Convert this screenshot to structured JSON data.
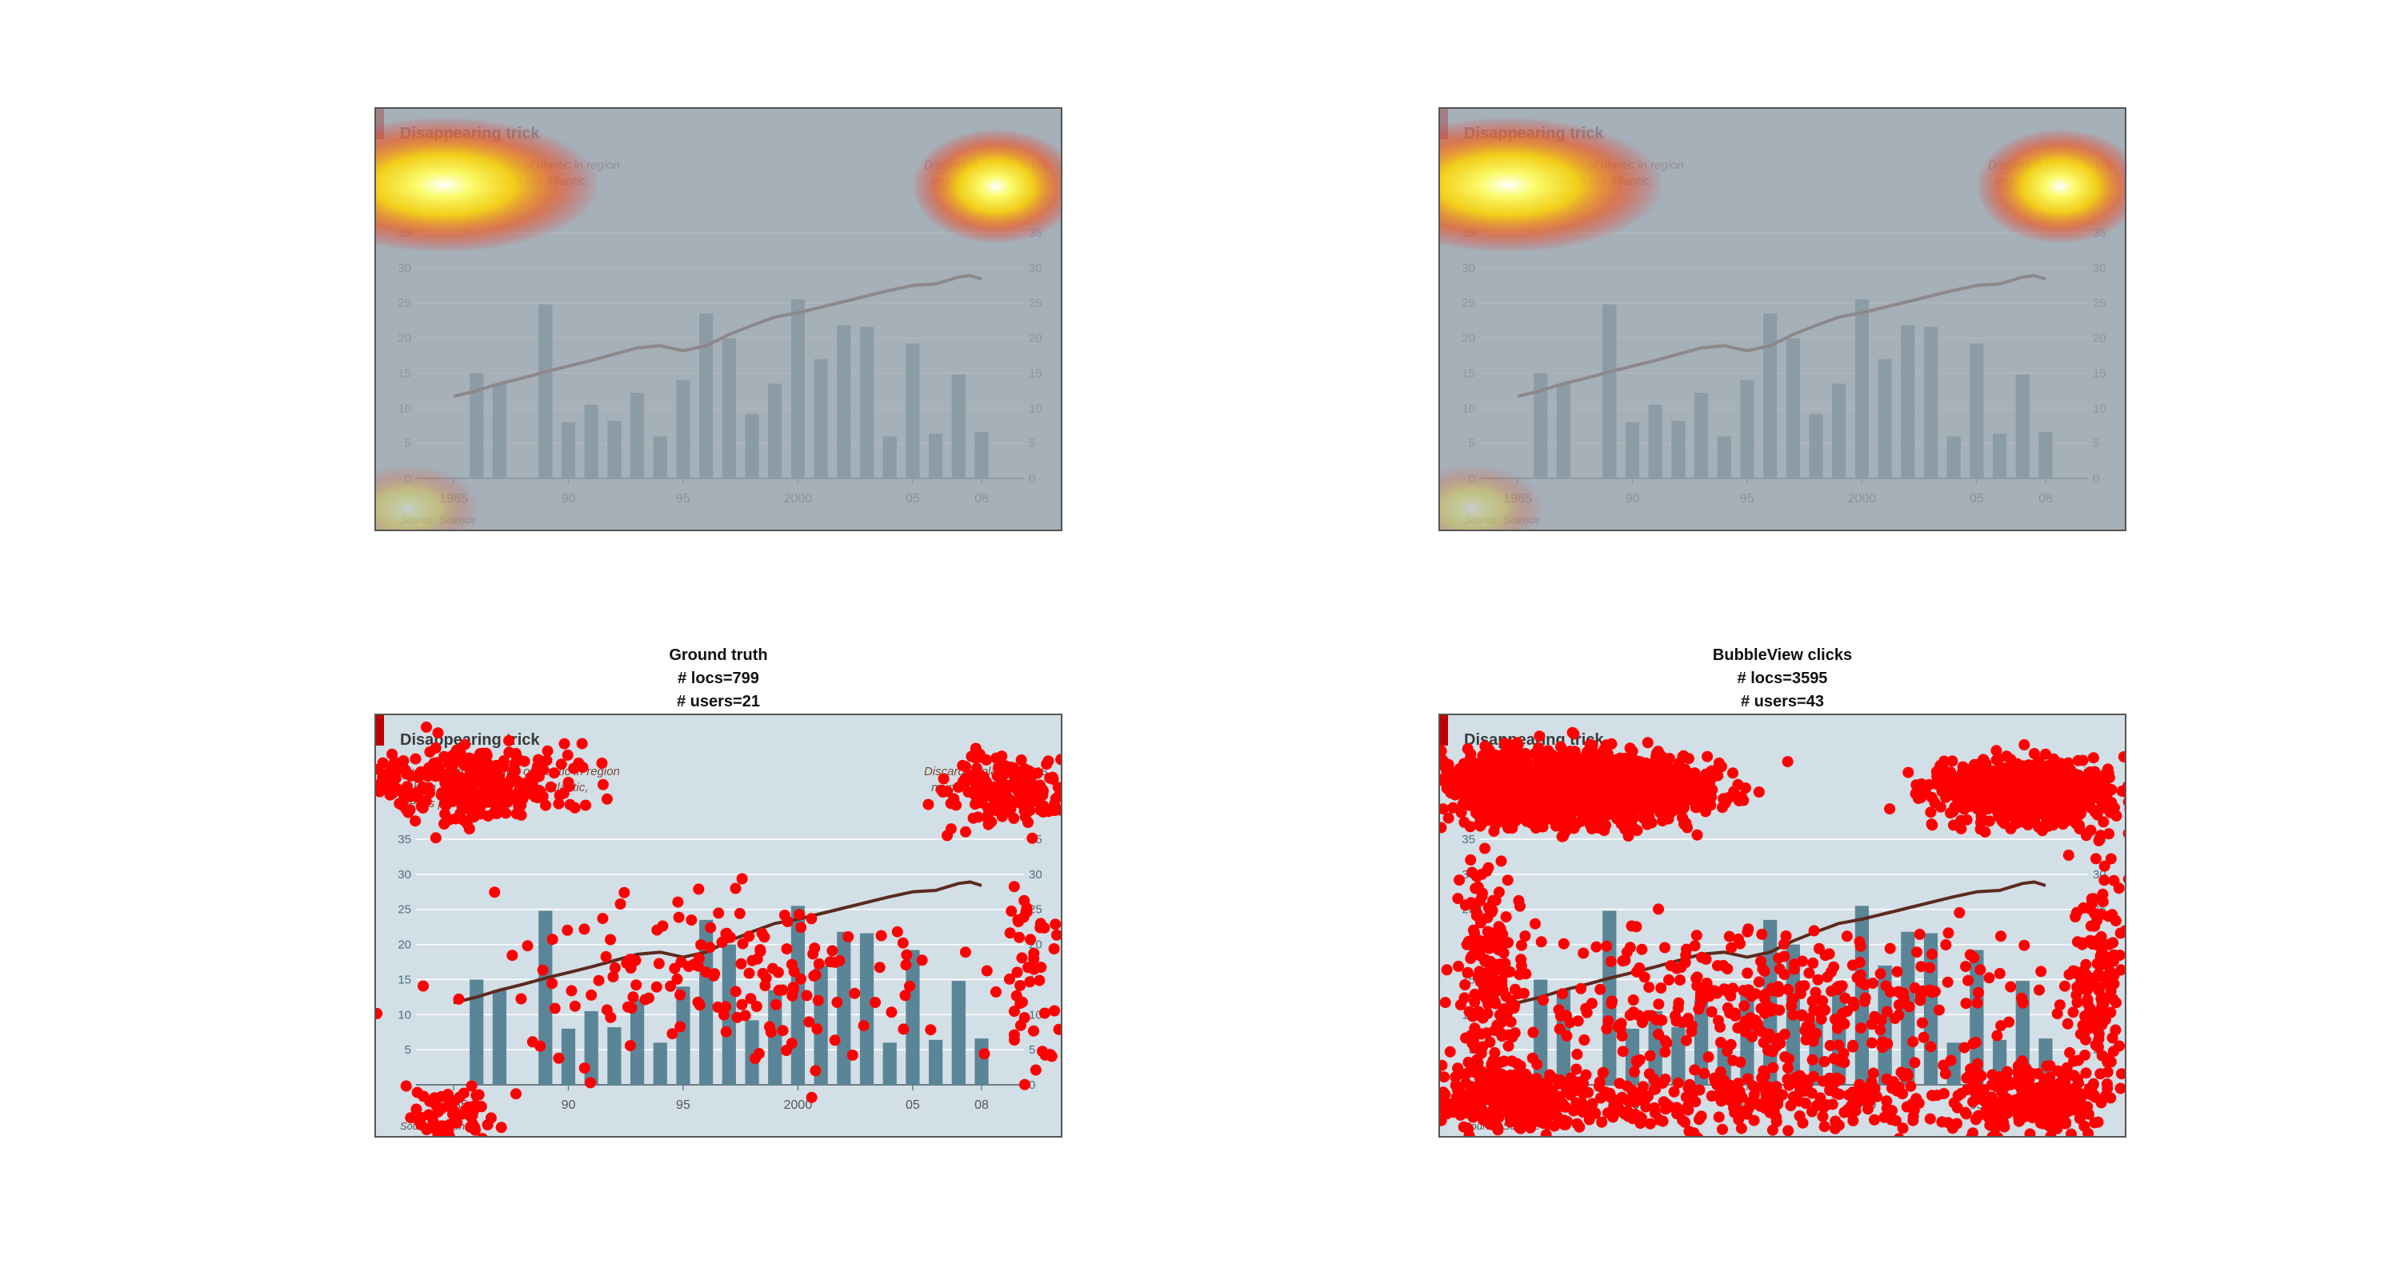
{
  "panels": [
    {
      "id": "tl",
      "caption": [],
      "mode": "heatmap"
    },
    {
      "id": "tr",
      "caption": [],
      "mode": "heatmap"
    },
    {
      "id": "bl",
      "caption": [
        "Ground truth",
        "# locs=799",
        "# users=21"
      ],
      "mode": "clicks"
    },
    {
      "id": "br",
      "caption": [
        "BubbleView clicks",
        "# locs=3595",
        "# users=43"
      ],
      "mode": "clicks"
    }
  ],
  "chart_data": {
    "type": "bar",
    "title": "Disappearing trick",
    "left_axis_title": [
      "Average concentration of plastic in region",
      "of high accumulation in the Atlantic,",
      "pieces per km², '000"
    ],
    "right_axis_title": [
      "Discarded plastic in US",
      "municipal solid waste,",
      "tonnes, m"
    ],
    "source": "Source: Science",
    "x_tick_labels": [
      {
        "year": 1985,
        "label": "1985"
      },
      {
        "year": 1990,
        "label": "90"
      },
      {
        "year": 1995,
        "label": "95"
      },
      {
        "year": 2000,
        "label": "2000"
      },
      {
        "year": 2005,
        "label": "05"
      },
      {
        "year": 2008,
        "label": "08"
      }
    ],
    "y_ticks": [
      0,
      5,
      10,
      15,
      20,
      25,
      30,
      35
    ],
    "ylim": [
      0,
      35
    ],
    "bars": {
      "name": "Average concentration of plastic",
      "years": [
        1986,
        1987,
        1989,
        1990,
        1991,
        1992,
        1993,
        1994,
        1995,
        1996,
        1997,
        1998,
        1999,
        2000,
        2001,
        2002,
        2003,
        2004,
        2005,
        2006,
        2007,
        2008
      ],
      "values": [
        15,
        13.5,
        24.8,
        8,
        10.5,
        8.2,
        12.2,
        6,
        14,
        23.5,
        20,
        9.2,
        13.5,
        25.5,
        17,
        21.8,
        21.6,
        6,
        19.2,
        6.4,
        14.8,
        6.6
      ]
    },
    "line": {
      "name": "Discarded plastic in US",
      "years": [
        1985,
        1986,
        1987,
        1988,
        1989,
        1990,
        1991,
        1992,
        1993,
        1994,
        1995,
        1996,
        1997,
        1998,
        1999,
        2000,
        2001,
        2002,
        2003,
        2004,
        2005,
        2006,
        2007,
        2007.5,
        2008
      ],
      "values": [
        11.7,
        12.5,
        13.5,
        14.3,
        15.2,
        16,
        16.8,
        17.7,
        18.6,
        18.9,
        18.2,
        18.9,
        20.5,
        21.8,
        23,
        23.6,
        24.4,
        25.2,
        26,
        26.8,
        27.5,
        27.7,
        28.7,
        28.9,
        28.4
      ]
    },
    "colors": {
      "bar": "#5a8597",
      "line": "#5c2a1e",
      "background": "#d3dfe6",
      "accent": "#c00000",
      "axis_text": "#4d6f82",
      "click": "#ff0000"
    }
  }
}
